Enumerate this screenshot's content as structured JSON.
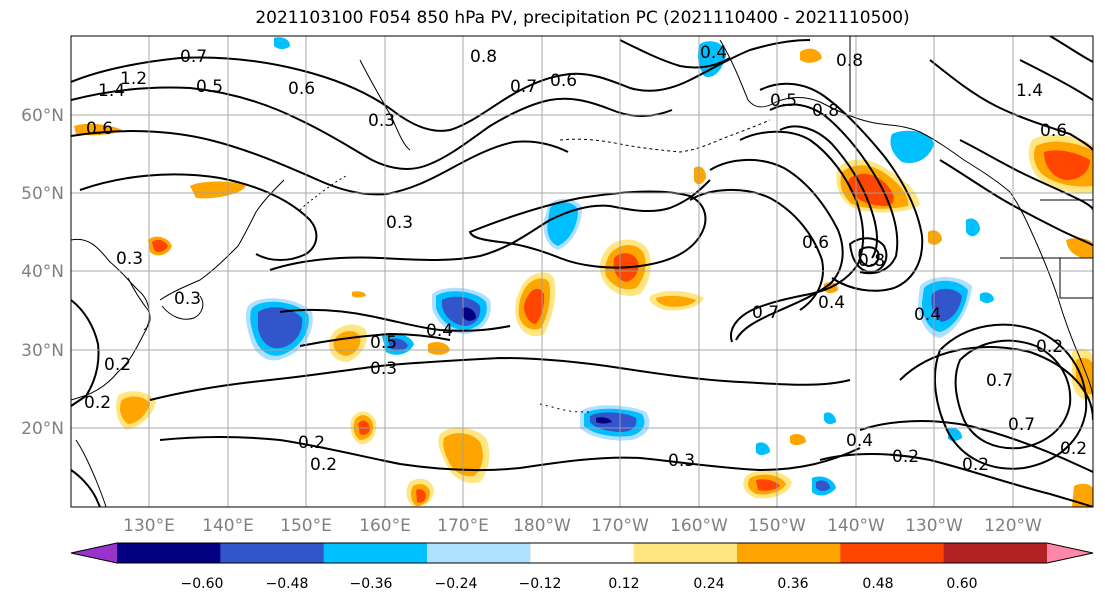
{
  "title": "2021103100 F054 850 hPa PV, precipitation PC (2021110400 - 2021110500)",
  "lat_labels": [
    "60°N",
    "50°N",
    "40°N",
    "30°N",
    "20°N"
  ],
  "lon_labels": [
    "130°E",
    "140°E",
    "150°E",
    "160°E",
    "170°E",
    "180°W",
    "170°W",
    "160°W",
    "150°W",
    "140°W",
    "130°W",
    "120°W"
  ],
  "contour_labels": [
    "0.7",
    "0.5",
    "1.4",
    "1.2",
    "0.6",
    "0.8",
    "0.6",
    "0.7",
    "0.4",
    "0.8",
    "0.8",
    "0.5",
    "0.3",
    "0.6",
    "1.4",
    "0.6",
    "0.3",
    "0.3",
    "0.2",
    "0.3",
    "0.5",
    "0.4",
    "0.3",
    "0.6",
    "0.7",
    "0.4",
    "0.8",
    "0.4",
    "0.2",
    "0.7",
    "0.2",
    "0.7",
    "0.2",
    "0.2",
    "0.3",
    "0.2",
    "0.2",
    "0.4",
    "0.2"
  ],
  "colorbar": {
    "ticks": [
      "−0.60",
      "−0.48",
      "−0.36",
      "−0.24",
      "−0.12",
      "0.12",
      "0.24",
      "0.36",
      "0.48",
      "0.60"
    ],
    "colors": [
      "#9933cc",
      "#000080",
      "#3355cc",
      "#00bfff",
      "#b0e0ff",
      "#ffffff",
      "#ffe680",
      "#ffa500",
      "#ff4500",
      "#b22222",
      "#ff88aa"
    ]
  },
  "fill_colors": {
    "neg1": "#00bfff",
    "neg2": "#3355cc",
    "neg3": "#000080",
    "neg0": "#b0e0ff",
    "pos0": "#ffe680",
    "pos1": "#ffa500",
    "pos2": "#ff4500",
    "pos3": "#b22222"
  }
}
